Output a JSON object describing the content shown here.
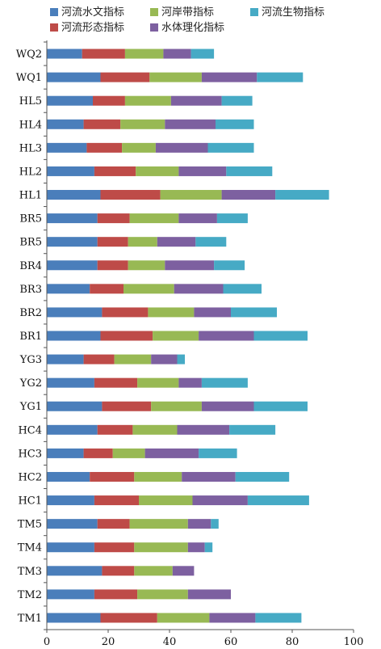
{
  "chart_data": {
    "type": "bar",
    "orientation": "horizontal",
    "stacked": true,
    "categories": [
      "WQ2",
      "WQ1",
      "HL5",
      "HL4",
      "HL3",
      "HL2",
      "HL1",
      "BR5",
      "BR5",
      "BR4",
      "BR3",
      "BR2",
      "BR1",
      "YG3",
      "YG2",
      "YG1",
      "HC4",
      "HC3",
      "HC2",
      "HC1",
      "TM5",
      "TM4",
      "TM3",
      "TM2",
      "TM1"
    ],
    "series": [
      {
        "name": "河流水文指标",
        "color": "#4a7ebb",
        "values": [
          11.5,
          17.5,
          15,
          12,
          13,
          15.5,
          17.5,
          16.5,
          16.5,
          16.5,
          14,
          18,
          17.5,
          12,
          15.5,
          18,
          16.5,
          12,
          14,
          15.5,
          16.5,
          15.5,
          18,
          15.5,
          17.5
        ]
      },
      {
        "name": "河流形态指标",
        "color": "#be4b48",
        "values": [
          14,
          16,
          10.5,
          12,
          11.5,
          13.5,
          19.5,
          10.5,
          10,
          10,
          11,
          15,
          17,
          10,
          14,
          16,
          11.5,
          9.5,
          14.5,
          14.5,
          10.5,
          13,
          10.5,
          14,
          18.5
        ]
      },
      {
        "name": "河岸带指标",
        "color": "#98b954",
        "values": [
          12.5,
          17,
          15,
          14.5,
          11,
          14,
          20,
          16,
          9.5,
          12,
          16.5,
          15,
          15,
          12,
          13.5,
          16.5,
          14.5,
          10.5,
          15.5,
          17.5,
          19,
          17.5,
          12.5,
          16.5,
          17
        ]
      },
      {
        "name": "水体理化指标",
        "color": "#7d60a0",
        "values": [
          9,
          18,
          16.5,
          16.5,
          17,
          15.5,
          17.5,
          12.5,
          12.5,
          16,
          16,
          12,
          18,
          8.5,
          7.5,
          17,
          17,
          17.5,
          17.5,
          18,
          7.5,
          5.5,
          7,
          14,
          15
        ]
      },
      {
        "name": "河流生物指标",
        "color": "#46aac5",
        "values": [
          7.5,
          15,
          10,
          12.5,
          15,
          15,
          17.5,
          10,
          10,
          10,
          12.5,
          15,
          17.5,
          2.5,
          15,
          17.5,
          15,
          12.5,
          17.5,
          20,
          2.5,
          2.5,
          0,
          0,
          15
        ]
      }
    ],
    "xlim": [
      0,
      100
    ],
    "xticks": [
      0,
      20,
      40,
      60,
      80,
      100
    ],
    "title": "",
    "xlabel": "",
    "ylabel": "",
    "legend_position": "top"
  }
}
